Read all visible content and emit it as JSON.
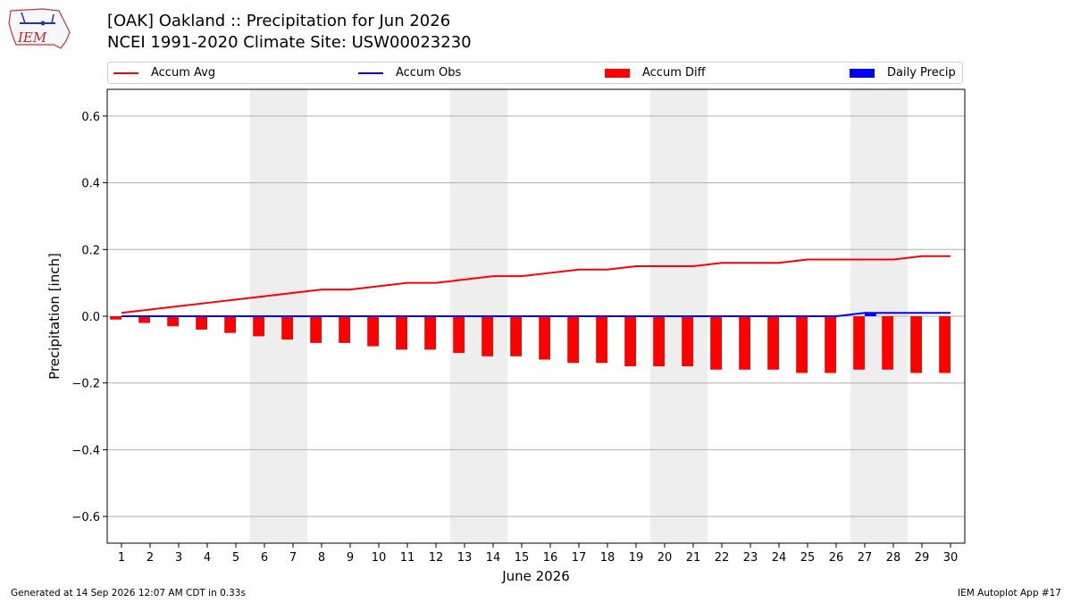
{
  "header": {
    "title_line1": "[OAK] Oakland :: Precipitation for Jun 2026",
    "title_line2": "NCEI 1991-2020 Climate Site: USW00023230"
  },
  "logo": {
    "text": "IEM"
  },
  "legend": {
    "items": [
      {
        "label": "Accum Avg",
        "kind": "line",
        "color": "#ff0000"
      },
      {
        "label": "Accum Obs",
        "kind": "line",
        "color": "#0000ff"
      },
      {
        "label": "Accum Diff",
        "kind": "bar",
        "color": "#ff0000"
      },
      {
        "label": "Daily Precip",
        "kind": "bar",
        "color": "#0000ff"
      }
    ]
  },
  "footer": {
    "left": "Generated at 14 Sep 2026 12:07 AM CDT in 0.33s",
    "right": "IEM Autoplot App #17"
  },
  "chart_data": {
    "type": "bar",
    "xlabel": "June 2026",
    "ylabel": "Precipitation [inch]",
    "ylim": [
      -0.68,
      0.68
    ],
    "yticks": [
      -0.6,
      -0.4,
      -0.2,
      0.0,
      0.2,
      0.4,
      0.6
    ],
    "ytick_labels": [
      "−0.6",
      "−0.4",
      "−0.2",
      "0.0",
      "0.2",
      "0.4",
      "0.6"
    ],
    "grid": "horizontal",
    "weekend_shading_days": [
      [
        6,
        7
      ],
      [
        13,
        14
      ],
      [
        20,
        21
      ],
      [
        27,
        28
      ]
    ],
    "x": [
      1,
      2,
      3,
      4,
      5,
      6,
      7,
      8,
      9,
      10,
      11,
      12,
      13,
      14,
      15,
      16,
      17,
      18,
      19,
      20,
      21,
      22,
      23,
      24,
      25,
      26,
      27,
      28,
      29,
      30
    ],
    "series": [
      {
        "name": "Accum Avg",
        "kind": "line",
        "color": "#ff0000",
        "values": [
          0.01,
          0.02,
          0.03,
          0.04,
          0.05,
          0.06,
          0.07,
          0.08,
          0.08,
          0.09,
          0.1,
          0.1,
          0.11,
          0.12,
          0.12,
          0.13,
          0.14,
          0.14,
          0.15,
          0.15,
          0.15,
          0.16,
          0.16,
          0.16,
          0.17,
          0.17,
          0.17,
          0.17,
          0.18,
          0.18
        ]
      },
      {
        "name": "Accum Obs",
        "kind": "line",
        "color": "#0000ff",
        "values": [
          0,
          0,
          0,
          0,
          0,
          0,
          0,
          0,
          0,
          0,
          0,
          0,
          0,
          0,
          0,
          0,
          0,
          0,
          0,
          0,
          0,
          0,
          0,
          0,
          0,
          0,
          0.01,
          0.01,
          0.01,
          0.01
        ]
      },
      {
        "name": "Accum Diff",
        "kind": "bar",
        "color": "#ff0000",
        "values": [
          -0.01,
          -0.02,
          -0.03,
          -0.04,
          -0.05,
          -0.06,
          -0.07,
          -0.08,
          -0.08,
          -0.09,
          -0.1,
          -0.1,
          -0.11,
          -0.12,
          -0.12,
          -0.13,
          -0.14,
          -0.14,
          -0.15,
          -0.15,
          -0.15,
          -0.16,
          -0.16,
          -0.16,
          -0.17,
          -0.17,
          -0.16,
          -0.16,
          -0.17,
          -0.17
        ]
      },
      {
        "name": "Daily Precip",
        "kind": "bar",
        "color": "#0000ff",
        "values": [
          0,
          0,
          0,
          0,
          0,
          0,
          0,
          0,
          0,
          0,
          0,
          0,
          0,
          0,
          0,
          0,
          0,
          0,
          0,
          0,
          0,
          0,
          0,
          0,
          0,
          0,
          0.01,
          0,
          0,
          0
        ]
      }
    ]
  }
}
